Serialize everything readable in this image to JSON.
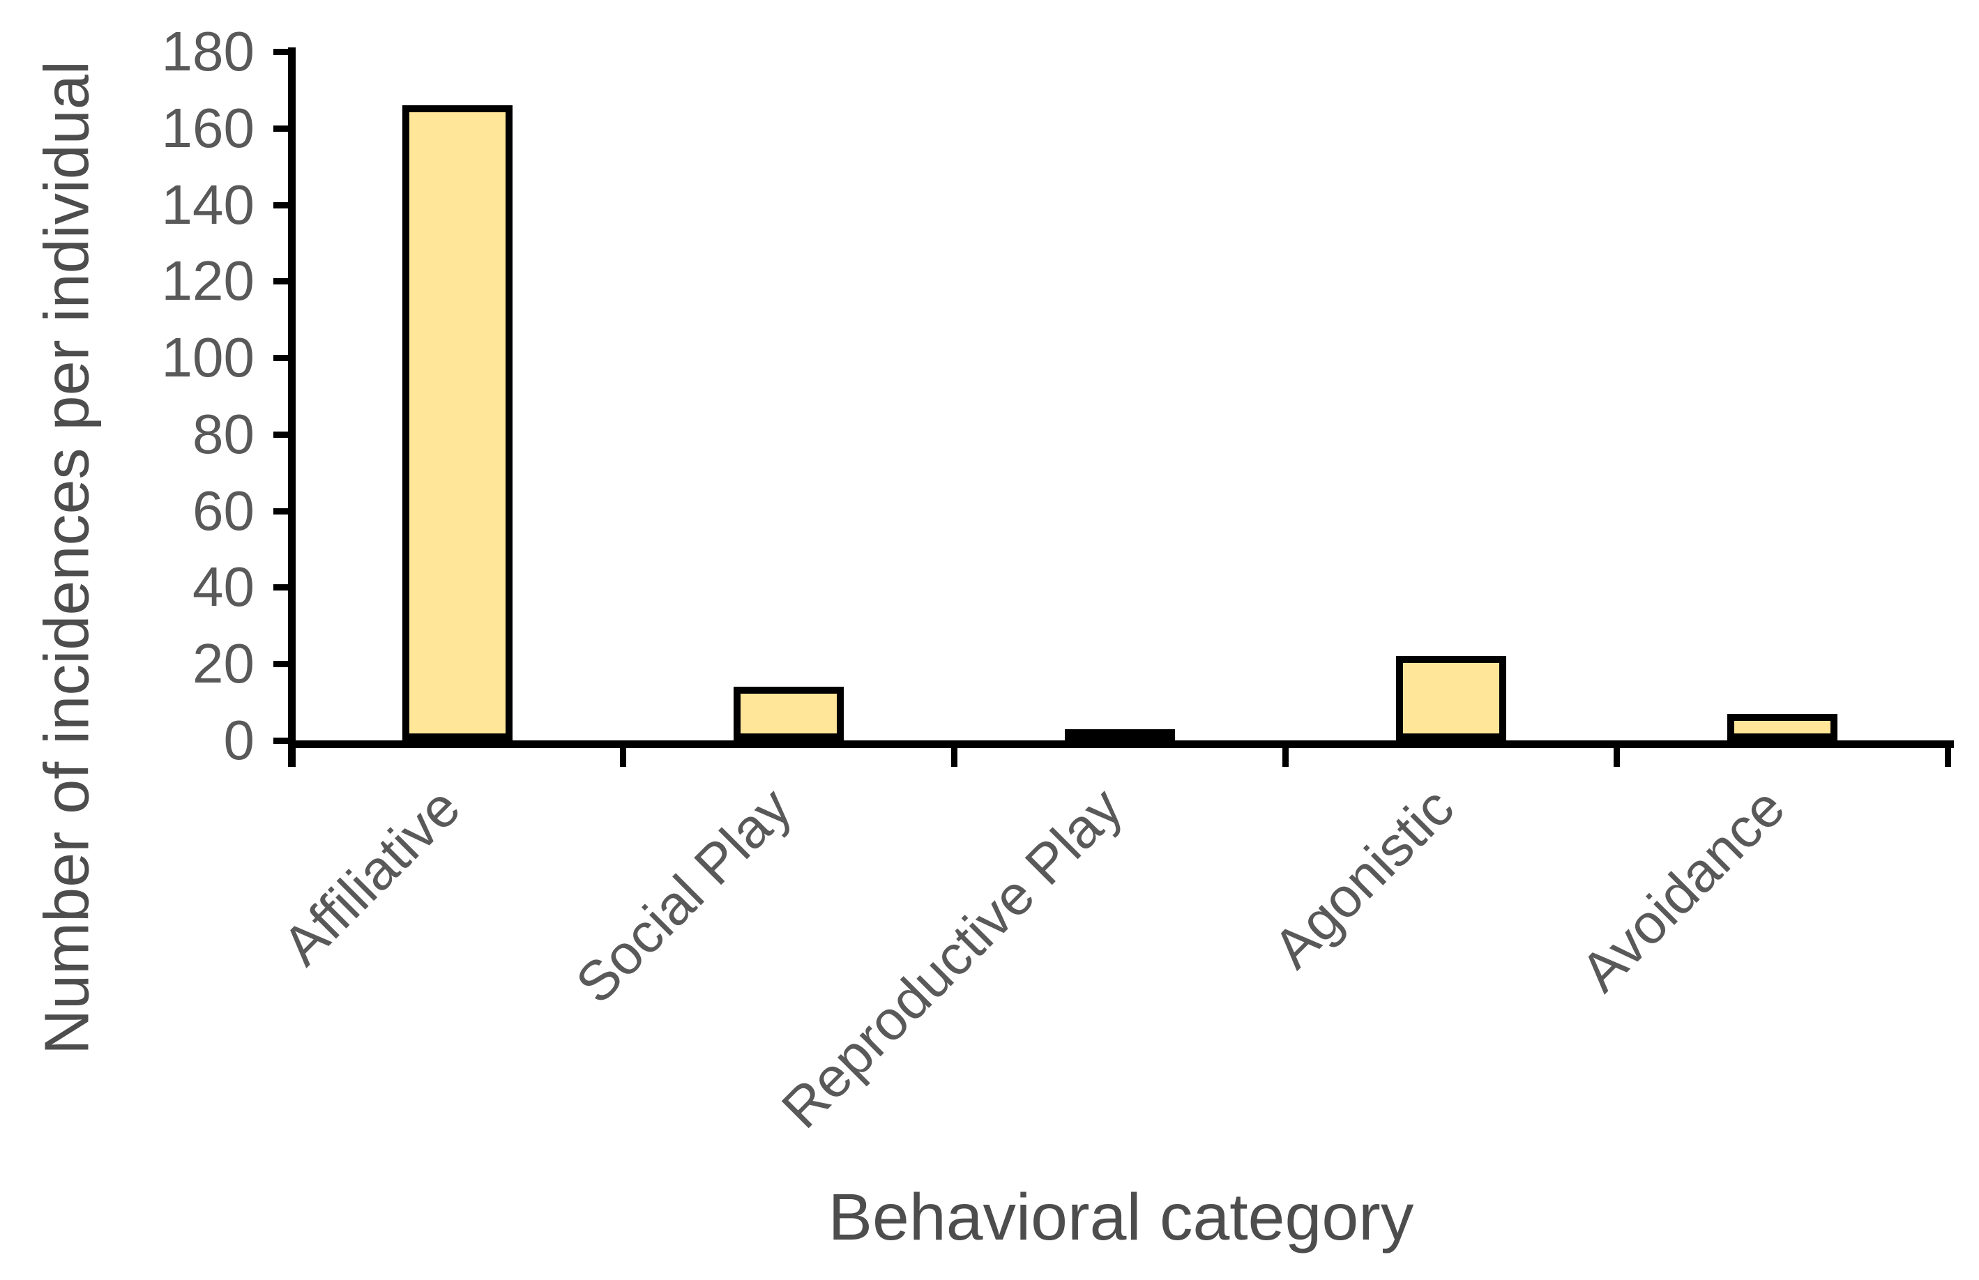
{
  "chart_data": {
    "type": "bar",
    "title": "",
    "categories": [
      "Affiliative",
      "Social Play",
      "Reproductive Play",
      "Agonistic",
      "Avoidance"
    ],
    "values": [
      166,
      14,
      3,
      22,
      7
    ],
    "xlabel": "Behavioral category",
    "ylabel": "Number of incidences per individual",
    "ylim": [
      0,
      180
    ],
    "ytick_step": 20,
    "yticks": [
      0,
      20,
      40,
      60,
      80,
      100,
      120,
      140,
      160,
      180
    ],
    "grid": false,
    "legend": "none",
    "bar_fill": "#FFE699",
    "bar_border": "#000000",
    "axis_color": "#000000",
    "label_color": "#595959",
    "title_color": "#4d4d4d"
  }
}
